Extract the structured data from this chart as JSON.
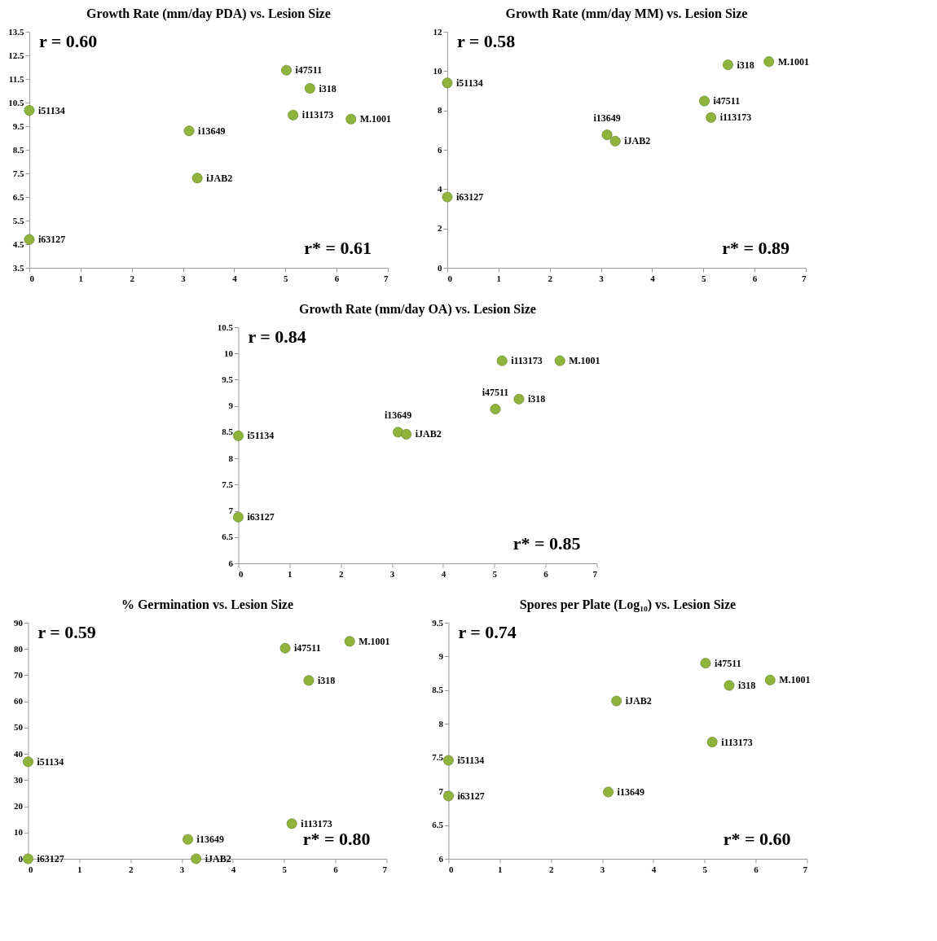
{
  "chart_data": [
    {
      "type": "scatter",
      "title": "Growth Rate (mm/day PDA) vs. Lesion Size",
      "xlim": [
        0,
        7
      ],
      "xticks": [
        0,
        1,
        2,
        3,
        4,
        5,
        6,
        7
      ],
      "ylim": [
        3.5,
        13.5
      ],
      "yticks": [
        3.5,
        4.5,
        5.5,
        6.5,
        7.5,
        8.5,
        9.5,
        10.5,
        11.5,
        12.5,
        13.5
      ],
      "grid": false,
      "legend": false,
      "marker": "circle",
      "series": [
        {
          "color": "#8fb43c",
          "x": [
            0,
            0,
            3.12,
            3.28,
            5.02,
            5.15,
            5.48,
            6.28
          ],
          "values": [
            10.17,
            4.7,
            9.3,
            7.3,
            11.87,
            9.97,
            11.1,
            9.8
          ]
        }
      ],
      "annotations": [
        "r = 0.60",
        "r* = 0.61",
        {
          "text": "i51134",
          "x": 0,
          "y": 10.17
        },
        {
          "text": "i63127",
          "x": 0,
          "y": 4.7
        },
        {
          "text": "i13649",
          "x": 3.12,
          "y": 9.3
        },
        {
          "text": "iJAB2",
          "x": 3.28,
          "y": 7.3
        },
        {
          "text": "i47511",
          "x": 5.02,
          "y": 11.87
        },
        {
          "text": "i113173",
          "x": 5.15,
          "y": 9.97
        },
        {
          "text": "i318",
          "x": 5.48,
          "y": 11.1
        },
        {
          "text": "M.1001",
          "x": 6.28,
          "y": 9.8
        }
      ]
    },
    {
      "type": "scatter",
      "title": "Growth Rate (mm/day MM) vs. Lesion Size",
      "xlim": [
        0,
        7
      ],
      "xticks": [
        0,
        1,
        2,
        3,
        4,
        5,
        6,
        7
      ],
      "ylim": [
        0,
        12
      ],
      "yticks": [
        0,
        2,
        4,
        6,
        8,
        10,
        12
      ],
      "grid": false,
      "legend": false,
      "marker": "circle",
      "series": [
        {
          "color": "#8fb43c",
          "x": [
            0,
            0,
            3.12,
            3.28,
            5.02,
            5.15,
            5.48,
            6.28
          ],
          "values": [
            9.4,
            3.6,
            6.76,
            6.44,
            8.48,
            7.64,
            10.32,
            10.48
          ]
        }
      ],
      "annotations": [
        "r = 0.58",
        "r* = 0.89",
        {
          "text": "i51134",
          "x": 0,
          "y": 9.4
        },
        {
          "text": "i63127",
          "x": 0,
          "y": 3.6
        },
        {
          "text": "i13649",
          "x": 3.12,
          "y": 6.76
        },
        {
          "text": "iJAB2",
          "x": 3.28,
          "y": 6.44
        },
        {
          "text": "i47511",
          "x": 5.02,
          "y": 8.48
        },
        {
          "text": "i113173",
          "x": 5.15,
          "y": 7.64
        },
        {
          "text": "i318",
          "x": 5.48,
          "y": 10.32
        },
        {
          "text": "M.1001",
          "x": 6.28,
          "y": 10.48
        }
      ]
    },
    {
      "type": "scatter",
      "title": "Growth Rate (mm/day OA) vs. Lesion Size",
      "xlim": [
        0,
        7
      ],
      "xticks": [
        0,
        1,
        2,
        3,
        4,
        5,
        6,
        7
      ],
      "ylim": [
        6,
        10.5
      ],
      "yticks": [
        6,
        6.5,
        7,
        7.5,
        8,
        8.5,
        9,
        9.5,
        10,
        10.5
      ],
      "grid": false,
      "legend": false,
      "marker": "circle",
      "series": [
        {
          "color": "#8fb43c",
          "x": [
            0,
            0,
            3.12,
            3.28,
            5.02,
            5.15,
            5.48,
            6.28
          ],
          "values": [
            8.43,
            6.88,
            8.5,
            8.46,
            8.94,
            9.86,
            9.13,
            9.86
          ]
        }
      ],
      "annotations": [
        "r = 0.84",
        "r* = 0.85",
        {
          "text": "i51134",
          "x": 0,
          "y": 8.43
        },
        {
          "text": "i63127",
          "x": 0,
          "y": 6.88
        },
        {
          "text": "i13649",
          "x": 3.12,
          "y": 8.5
        },
        {
          "text": "iJAB2",
          "x": 3.28,
          "y": 8.46
        },
        {
          "text": "i47511",
          "x": 5.02,
          "y": 8.94
        },
        {
          "text": "i113173",
          "x": 5.15,
          "y": 9.86
        },
        {
          "text": "i318",
          "x": 5.48,
          "y": 9.13
        },
        {
          "text": "M.1001",
          "x": 6.28,
          "y": 9.86
        }
      ]
    },
    {
      "type": "scatter",
      "title": "% Germination vs. Lesion Size",
      "xlim": [
        0,
        7
      ],
      "xticks": [
        0,
        1,
        2,
        3,
        4,
        5,
        6,
        7
      ],
      "ylim": [
        0,
        90
      ],
      "yticks": [
        0,
        10,
        20,
        30,
        40,
        50,
        60,
        70,
        80,
        90
      ],
      "grid": false,
      "legend": false,
      "marker": "circle",
      "series": [
        {
          "color": "#8fb43c",
          "x": [
            0,
            0,
            3.12,
            3.28,
            5.02,
            5.15,
            5.48,
            6.28
          ],
          "values": [
            37,
            0,
            7.4,
            0,
            80.3,
            13.4,
            68,
            82.9
          ]
        }
      ],
      "annotations": [
        "r = 0.59",
        "r* = 0.80",
        {
          "text": "i51134",
          "x": 0,
          "y": 37
        },
        {
          "text": "i63127",
          "x": 0,
          "y": 0
        },
        {
          "text": "i13649",
          "x": 3.12,
          "y": 7.4
        },
        {
          "text": "iJAB2",
          "x": 3.28,
          "y": 0
        },
        {
          "text": "i47511",
          "x": 5.02,
          "y": 80.3
        },
        {
          "text": "i113173",
          "x": 5.15,
          "y": 13.4
        },
        {
          "text": "i318",
          "x": 5.48,
          "y": 68
        },
        {
          "text": "M.1001",
          "x": 6.28,
          "y": 82.9
        }
      ]
    },
    {
      "type": "scatter",
      "title": "Spores per Plate (Log₁₀) vs. Lesion Size",
      "xlim": [
        0,
        7
      ],
      "xticks": [
        0,
        1,
        2,
        3,
        4,
        5,
        6,
        7
      ],
      "ylim": [
        6,
        9.5
      ],
      "yticks": [
        6,
        6.5,
        7,
        7.5,
        8,
        8.5,
        9,
        9.5
      ],
      "grid": false,
      "legend": false,
      "marker": "circle",
      "series": [
        {
          "color": "#8fb43c",
          "x": [
            0,
            0,
            3.12,
            3.28,
            5.02,
            5.15,
            5.48,
            6.28
          ],
          "values": [
            7.46,
            6.93,
            6.99,
            8.34,
            8.9,
            7.73,
            8.57,
            8.65
          ]
        }
      ],
      "annotations": [
        "r = 0.74",
        "r* = 0.60",
        {
          "text": "i51134",
          "x": 0,
          "y": 7.46
        },
        {
          "text": "i63127",
          "x": 0,
          "y": 6.93
        },
        {
          "text": "i13649",
          "x": 3.12,
          "y": 6.99
        },
        {
          "text": "iJAB2",
          "x": 3.28,
          "y": 8.34
        },
        {
          "text": "i47511",
          "x": 5.02,
          "y": 8.9
        },
        {
          "text": "i113173",
          "x": 5.15,
          "y": 7.73
        },
        {
          "text": "i318",
          "x": 5.48,
          "y": 8.57
        },
        {
          "text": "M.1001",
          "x": 6.28,
          "y": 8.65
        }
      ]
    }
  ]
}
